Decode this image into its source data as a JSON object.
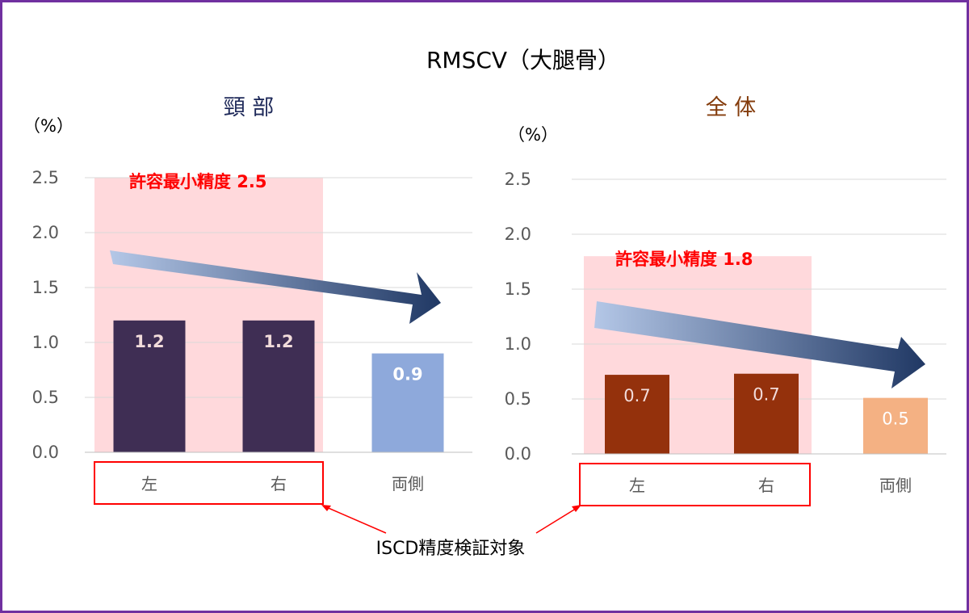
{
  "title": "RMSCV（大腿骨）",
  "footer_label": "ISCD精度検証対象",
  "colors": {
    "border": "#7030A0",
    "limit_fill": "#FFD9DC",
    "limit_text": "#FF0000",
    "grid": "#D9D9D9",
    "axis_text": "#595959",
    "highlight_box": "#FF0000"
  },
  "chart_data": [
    {
      "type": "bar",
      "title": "頸 部",
      "title_color": "#1F2A5A",
      "ylabel": "（%）",
      "ylim": [
        0,
        2.5
      ],
      "yticks": [
        "0.0",
        "0.5",
        "1.0",
        "1.5",
        "2.0",
        "2.5"
      ],
      "categories": [
        "左",
        "右",
        "両側"
      ],
      "values": [
        1.2,
        1.2,
        0.9
      ],
      "value_labels": [
        "1.2",
        "1.2",
        "0.9"
      ],
      "bar_colors": [
        "#3F2E54",
        "#3F2E54",
        "#8EA9DB"
      ],
      "label_colors": [
        "#F2DCDB",
        "#F2DCDB",
        "#FFFFFF"
      ],
      "limit_value": 2.5,
      "limit_label": "許容最小精度  2.5",
      "trend_arrow": "down-right"
    },
    {
      "type": "bar",
      "title": "全 体",
      "title_color": "#843C0C",
      "ylabel": "（%）",
      "ylim": [
        0,
        2.5
      ],
      "yticks": [
        "0.0",
        "0.5",
        "1.0",
        "1.5",
        "2.0",
        "2.5"
      ],
      "categories": [
        "左",
        "右",
        "両側"
      ],
      "values": [
        0.72,
        0.73,
        0.51
      ],
      "value_labels": [
        "0.7",
        "0.7",
        "0.5"
      ],
      "bar_colors": [
        "#94310C",
        "#94310C",
        "#F4B183"
      ],
      "label_colors": [
        "#F2DCDB",
        "#F2DCDB",
        "#FFFFFF"
      ],
      "limit_value": 1.8,
      "limit_label": "許容最小精度 1.8",
      "trend_arrow": "down-right"
    }
  ]
}
